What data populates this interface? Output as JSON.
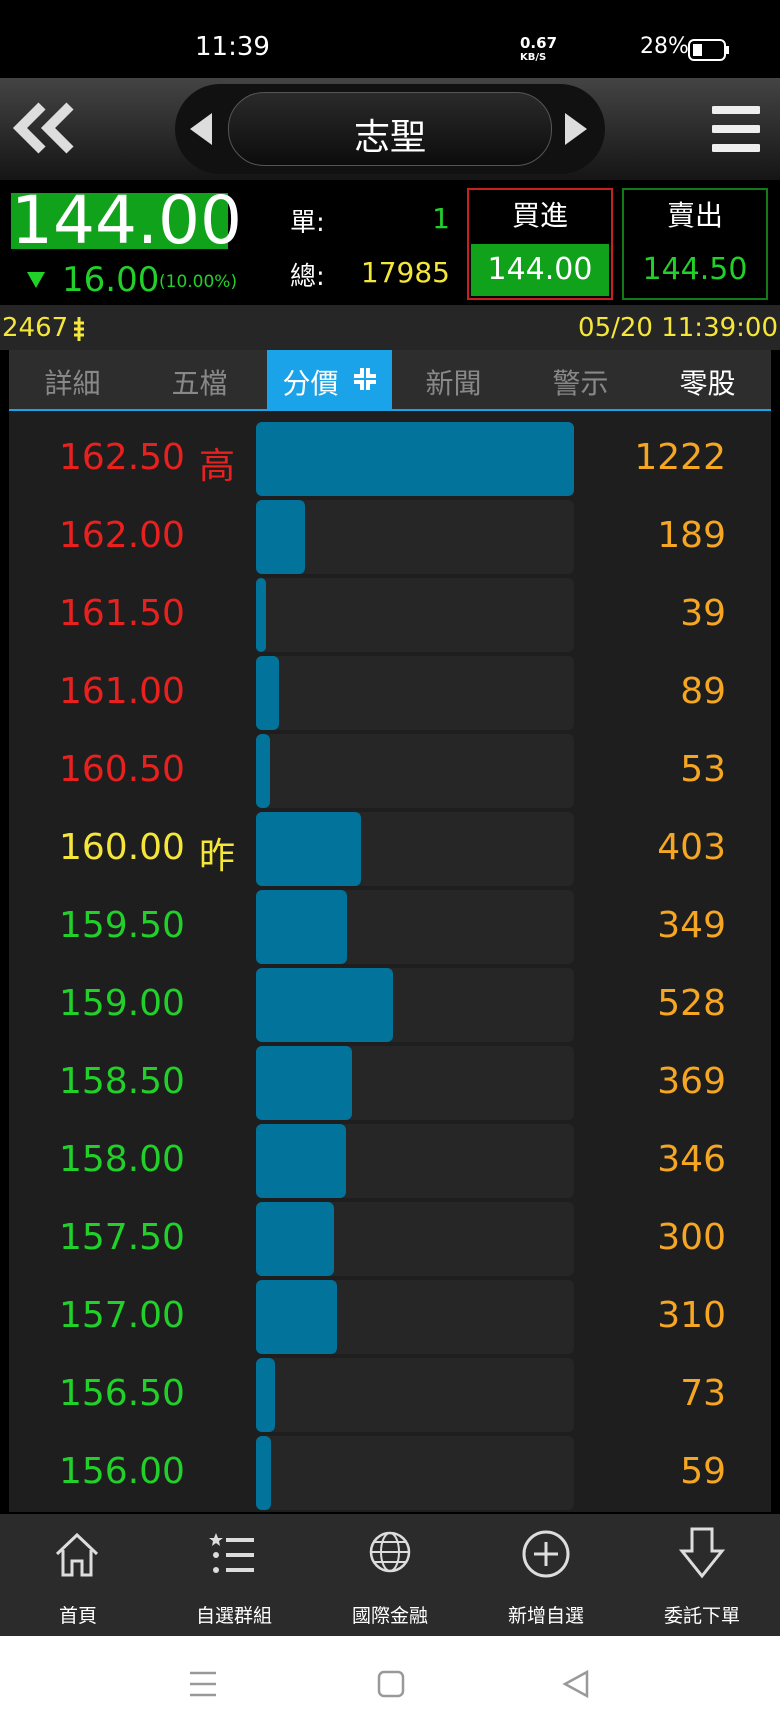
{
  "status_bar": {
    "time": "11:39",
    "net_speed": "0.67",
    "net_unit": "KB/S",
    "battery": "28%"
  },
  "header": {
    "title": "志聖"
  },
  "quote": {
    "price": "144.00",
    "change": "16.00",
    "change_pct": "(10.00%)",
    "single_label": "單:",
    "single": "1",
    "total_label": "總:",
    "total": "17985",
    "buy_label": "買進",
    "buy_price": "144.00",
    "sell_label": "賣出",
    "sell_price": "144.50",
    "code": "2467",
    "datetime": "05/20 11:39:00"
  },
  "tabs": {
    "items": [
      "詳細",
      "五檔",
      "分價",
      "新聞",
      "警示",
      "零股"
    ],
    "active": 2
  },
  "volume_by_price": {
    "xlim": [
      0,
      1222
    ],
    "bar_color": "#02739a",
    "volume_color": "#f5a623",
    "rows": [
      {
        "price": "162.50",
        "tag": "高",
        "volume": 1222,
        "color": "#e8201e"
      },
      {
        "price": "162.00",
        "volume": 189,
        "color": "#e8201e"
      },
      {
        "price": "161.50",
        "volume": 39,
        "color": "#e8201e"
      },
      {
        "price": "161.00",
        "volume": 89,
        "color": "#e8201e"
      },
      {
        "price": "160.50",
        "volume": 53,
        "color": "#e8201e"
      },
      {
        "price": "160.00",
        "tag": "昨",
        "volume": 403,
        "color": "#f5e63a"
      },
      {
        "price": "159.50",
        "volume": 349,
        "color": "#22d02a"
      },
      {
        "price": "159.00",
        "volume": 528,
        "color": "#22d02a"
      },
      {
        "price": "158.50",
        "volume": 369,
        "color": "#22d02a"
      },
      {
        "price": "158.00",
        "volume": 346,
        "color": "#22d02a"
      },
      {
        "price": "157.50",
        "volume": 300,
        "color": "#22d02a"
      },
      {
        "price": "157.00",
        "volume": 310,
        "color": "#22d02a"
      },
      {
        "price": "156.50",
        "volume": 73,
        "color": "#22d02a"
      },
      {
        "price": "156.00",
        "volume": 59,
        "color": "#22d02a"
      }
    ]
  },
  "bottom_nav": [
    "首頁",
    "自選群組",
    "國際金融",
    "新增自選",
    "委託下單"
  ]
}
